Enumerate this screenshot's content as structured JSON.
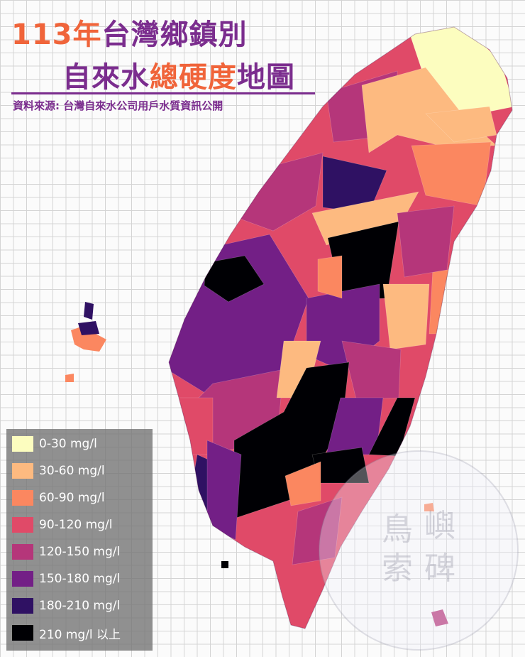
{
  "header": {
    "title_line1": [
      {
        "text": "113年",
        "color": "#f0643a"
      },
      {
        "text": "台灣鄉鎮別",
        "color": "#7b2d8e"
      }
    ],
    "title_line2": [
      {
        "text": "自來水",
        "color": "#7b2d8e"
      },
      {
        "text": "總硬度",
        "color": "#f0643a"
      },
      {
        "text": "地圖",
        "color": "#7b2d8e"
      }
    ],
    "source": "資料來源: 台灣自來水公司用戶水質資訊公開"
  },
  "legend": [
    {
      "label": "0-30 mg/l",
      "color": "#fcfdbf"
    },
    {
      "label": "30-60 mg/l",
      "color": "#fdba80"
    },
    {
      "label": "60-90 mg/l",
      "color": "#fb8760"
    },
    {
      "label": "90-120 mg/l",
      "color": "#e04a68"
    },
    {
      "label": "120-150 mg/l",
      "color": "#b5367a"
    },
    {
      "label": "150-180 mg/l",
      "color": "#731f86"
    },
    {
      "label": "180-210 mg/l",
      "color": "#2f1163"
    },
    {
      "label": "210 mg/l 以上",
      "color": "#000004"
    }
  ],
  "watermark": [
    "鳥",
    "嶼",
    "索",
    "碑"
  ]
}
